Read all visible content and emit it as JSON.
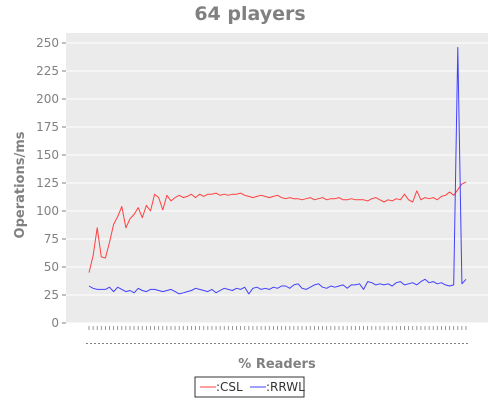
{
  "chart_data": {
    "type": "line",
    "title": "64 players",
    "xlabel": "% Readers",
    "ylabel": "Operations/ms",
    "ylim": [
      0,
      250
    ],
    "yticks": [
      0,
      25,
      50,
      75,
      100,
      125,
      150,
      175,
      200,
      225,
      250
    ],
    "x_tick_labels_visible": false,
    "grid": true,
    "legend_position": "bottom",
    "series": [
      {
        "name": ":CSL",
        "color": "#ff4040",
        "values": [
          45,
          60,
          85,
          59,
          58,
          72,
          88,
          95,
          104,
          85,
          93,
          97,
          103,
          94,
          105,
          100,
          115,
          112,
          101,
          114,
          109,
          112,
          114,
          112,
          113,
          115,
          112,
          115,
          113,
          115,
          115,
          116,
          114,
          115,
          114,
          115,
          115,
          116,
          114,
          113,
          112,
          113,
          114,
          113,
          112,
          113,
          114,
          112,
          111,
          112,
          111,
          111,
          110,
          111,
          112,
          110,
          111,
          112,
          110,
          111,
          111,
          112,
          110,
          110,
          111,
          110,
          110,
          110,
          109,
          111,
          112,
          110,
          108,
          110,
          109,
          111,
          110,
          115,
          110,
          108,
          118,
          110,
          112,
          111,
          112,
          110,
          113,
          114,
          117,
          114,
          119,
          124,
          126
        ]
      },
      {
        "name": ":RRWL",
        "color": "#4040ff",
        "values": [
          33,
          31,
          30,
          30,
          30,
          32,
          28,
          32,
          30,
          28,
          29,
          27,
          31,
          29,
          28,
          30,
          30,
          29,
          28,
          29,
          30,
          28,
          26,
          27,
          28,
          29,
          31,
          30,
          29,
          28,
          30,
          27,
          29,
          31,
          30,
          29,
          31,
          30,
          32,
          26,
          31,
          32,
          30,
          31,
          30,
          32,
          31,
          33,
          33,
          31,
          34,
          35,
          31,
          30,
          32,
          34,
          35,
          32,
          31,
          33,
          32,
          33,
          34,
          31,
          34,
          34,
          35,
          30,
          37,
          36,
          34,
          35,
          34,
          35,
          33,
          36,
          37,
          34,
          35,
          36,
          34,
          37,
          39,
          36,
          37,
          35,
          36,
          34,
          33,
          34,
          246,
          35,
          39
        ]
      }
    ]
  }
}
